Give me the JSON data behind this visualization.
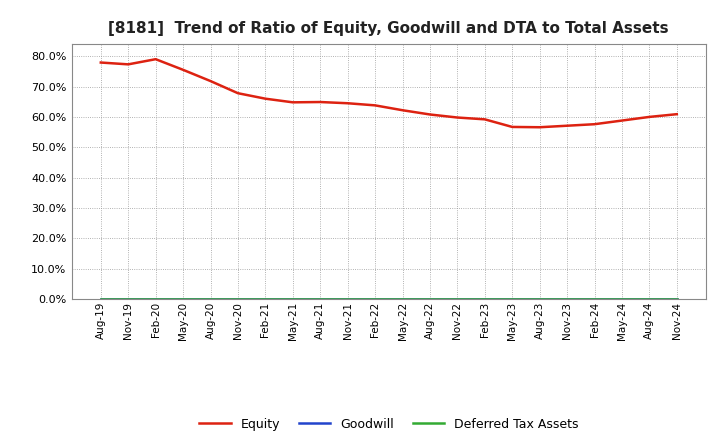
{
  "title": "[8181]  Trend of Ratio of Equity, Goodwill and DTA to Total Assets",
  "x_labels": [
    "Aug-19",
    "Nov-19",
    "Feb-20",
    "May-20",
    "Aug-20",
    "Nov-20",
    "Feb-21",
    "May-21",
    "Aug-21",
    "Nov-21",
    "Feb-22",
    "May-22",
    "Aug-22",
    "Nov-22",
    "Feb-23",
    "May-23",
    "Aug-23",
    "Nov-23",
    "Feb-24",
    "May-24",
    "Aug-24",
    "Nov-24"
  ],
  "equity": [
    0.779,
    0.773,
    0.79,
    0.755,
    0.718,
    0.678,
    0.66,
    0.648,
    0.649,
    0.645,
    0.638,
    0.622,
    0.608,
    0.598,
    0.592,
    0.567,
    0.566,
    0.571,
    0.576,
    0.588,
    0.6,
    0.609
  ],
  "goodwill": [
    0.0,
    0.0,
    0.0,
    0.0,
    0.0,
    0.0,
    0.0,
    0.0,
    0.0,
    0.0,
    0.0,
    0.0,
    0.0,
    0.0,
    0.0,
    0.0,
    0.0,
    0.0,
    0.0,
    0.0,
    0.0,
    0.0
  ],
  "dta": [
    0.0,
    0.0,
    0.0,
    0.0,
    0.0,
    0.0,
    0.0,
    0.0,
    0.0,
    0.0,
    0.0,
    0.0,
    0.0,
    0.0,
    0.0,
    0.0,
    0.0,
    0.0,
    0.0,
    0.0,
    0.0,
    0.0
  ],
  "equity_color": "#dd2211",
  "goodwill_color": "#2244cc",
  "dta_color": "#33aa33",
  "ylim": [
    0.0,
    0.84
  ],
  "yticks": [
    0.0,
    0.1,
    0.2,
    0.3,
    0.4,
    0.5,
    0.6,
    0.7,
    0.8
  ],
  "background_color": "#ffffff",
  "plot_bg_color": "#ffffff",
  "grid_color": "#999999",
  "title_fontsize": 11,
  "legend_labels": [
    "Equity",
    "Goodwill",
    "Deferred Tax Assets"
  ]
}
